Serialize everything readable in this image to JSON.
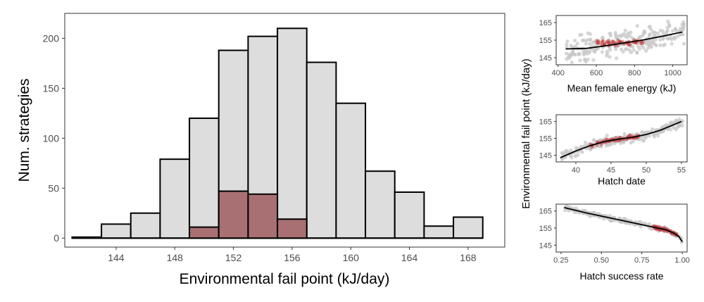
{
  "colors": {
    "grey_fill": "#dddddd",
    "red_fill": "#a87072",
    "outline": "#000000",
    "scatter_grey": "#c8c8c8",
    "scatter_red": "#c0393b"
  },
  "chart_data": [
    {
      "type": "bar",
      "title": "",
      "xlabel": "Environmental fail point (kJ/day)",
      "ylabel": "Num. strategies",
      "x_ticks": [
        144,
        148,
        152,
        156,
        160,
        164,
        168
      ],
      "y_ticks": [
        0,
        50,
        100,
        150,
        200
      ],
      "xlim": [
        140.5,
        170.5
      ],
      "ylim": [
        -9,
        225
      ],
      "bin_width": 2,
      "bin_starts": [
        141,
        143,
        145,
        147,
        149,
        151,
        153,
        155,
        157,
        159,
        161,
        163,
        165,
        167
      ],
      "series": [
        {
          "values": [
            1,
            14,
            25,
            79,
            120,
            188,
            202,
            210,
            176,
            135,
            67,
            46,
            12,
            21
          ]
        },
        {
          "values": [
            0,
            0,
            0,
            0,
            11,
            47,
            44,
            19,
            0,
            0,
            0,
            0,
            0,
            0
          ]
        }
      ]
    },
    {
      "type": "scatter",
      "xlabel": "Mean female energy (kJ)",
      "ylabel": "Environmental fail point (kJ/day)",
      "x_ticks": [
        400,
        600,
        800,
        1000
      ],
      "y_ticks": [
        145,
        155,
        165
      ],
      "xlim": [
        390,
        1075
      ],
      "ylim": [
        141,
        169
      ],
      "trend": [
        [
          440,
          150.0
        ],
        [
          550,
          150.3
        ],
        [
          650,
          151.8
        ],
        [
          750,
          153.5
        ],
        [
          850,
          155.2
        ],
        [
          950,
          157.3
        ],
        [
          1050,
          159.6
        ]
      ],
      "grey_cloud": {
        "x_range": [
          440,
          1060
        ],
        "y_spread": 8
      },
      "red_cloud": {
        "x_range": [
          600,
          850
        ],
        "y_center": 153.5,
        "y_spread": 2
      }
    },
    {
      "type": "scatter",
      "xlabel": "Hatch date",
      "ylabel": "",
      "x_ticks": [
        40,
        45,
        50,
        55
      ],
      "y_ticks": [
        145,
        155,
        165
      ],
      "xlim": [
        37.2,
        55.8
      ],
      "ylim": [
        141,
        169
      ],
      "trend": [
        [
          37.8,
          143.5
        ],
        [
          40,
          147.5
        ],
        [
          42,
          150.6
        ],
        [
          44,
          153.0
        ],
        [
          46,
          154.5
        ],
        [
          48,
          155.6
        ],
        [
          50,
          157.3
        ],
        [
          52,
          159.8
        ],
        [
          55,
          165.0
        ]
      ],
      "grey_cloud": {
        "x_range": [
          38,
          55.3
        ],
        "y_spread": 3
      },
      "red_cloud": {
        "x_range": [
          42,
          49
        ],
        "y_spread": 1.5
      }
    },
    {
      "type": "scatter",
      "xlabel": "Hatch success rate",
      "ylabel": "",
      "x_tick_labels": [
        "0.25",
        "0.50",
        "0.75",
        "1.00"
      ],
      "x_ticks": [
        0.25,
        0.5,
        0.75,
        1.0
      ],
      "y_ticks": [
        145,
        155,
        165
      ],
      "xlim": [
        0.22,
        1.03
      ],
      "ylim": [
        141,
        169
      ],
      "trend": [
        [
          0.27,
          167.0
        ],
        [
          0.4,
          164.0
        ],
        [
          0.5,
          162.0
        ],
        [
          0.6,
          160.0
        ],
        [
          0.7,
          158.0
        ],
        [
          0.8,
          156.0
        ],
        [
          0.9,
          154.0
        ],
        [
          0.95,
          152.0
        ],
        [
          0.98,
          150.0
        ],
        [
          1.0,
          147.0
        ]
      ],
      "grey_cloud": {
        "x_range": [
          0.27,
          1.0
        ],
        "y_spread": 1.5
      },
      "red_cloud": {
        "x_range": [
          0.82,
          0.97
        ],
        "y_spread": 1.2
      }
    }
  ]
}
